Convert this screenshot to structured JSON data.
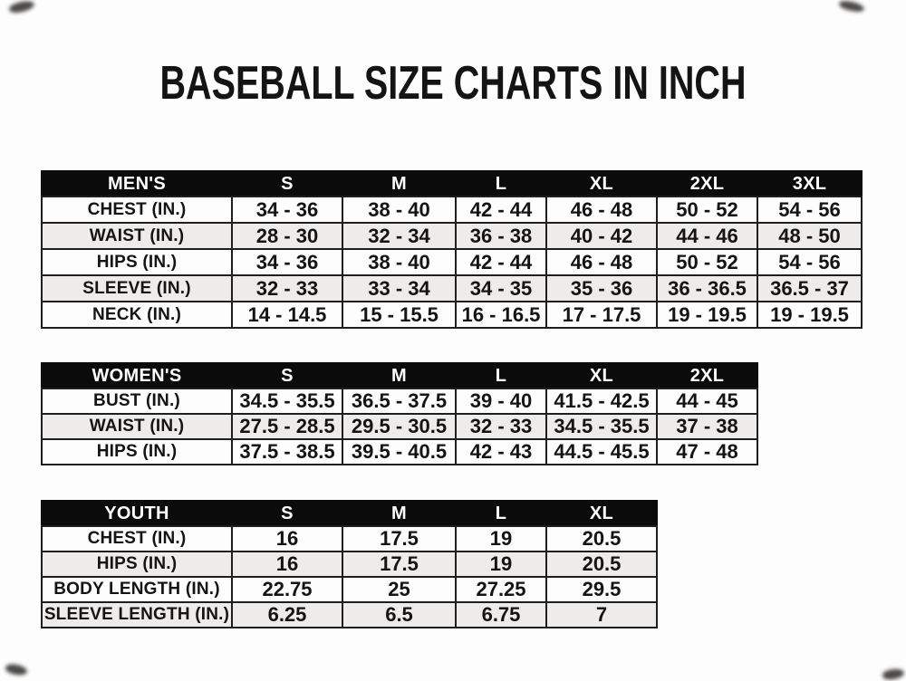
{
  "title": "BASEBALL SIZE CHARTS IN INCH",
  "colors": {
    "header_bg": "#0b0b0b",
    "header_text": "#ffffff",
    "row_odd_bg": "#fdfdfd",
    "row_even_bg": "#edecea",
    "border": "#1e1e1e",
    "text": "#141414"
  },
  "tables": [
    {
      "id": "mens",
      "header": [
        "MEN'S",
        "S",
        "M",
        "L",
        "XL",
        "2XL",
        "3XL"
      ],
      "rows": [
        [
          "CHEST (IN.)",
          "34 - 36",
          "38 - 40",
          "42 - 44",
          "46 - 48",
          "50 - 52",
          "54 - 56"
        ],
        [
          "WAIST (IN.)",
          "28 - 30",
          "32 - 34",
          "36 - 38",
          "40 - 42",
          "44 - 46",
          "48 - 50"
        ],
        [
          "HIPS (IN.)",
          "34 - 36",
          "38 - 40",
          "42 - 44",
          "46 - 48",
          "50 - 52",
          "54 - 56"
        ],
        [
          "SLEEVE (IN.)",
          "32 - 33",
          "33 - 34",
          "34 - 35",
          "35 - 36",
          "36 - 36.5",
          "36.5 - 37"
        ],
        [
          "NECK (IN.)",
          "14 - 14.5",
          "15 - 15.5",
          "16 - 16.5",
          "17 - 17.5",
          "19 - 19.5",
          "19 - 19.5"
        ]
      ]
    },
    {
      "id": "womens",
      "header": [
        "WOMEN'S",
        "S",
        "M",
        "L",
        "XL",
        "2XL"
      ],
      "rows": [
        [
          "BUST (IN.)",
          "34.5 - 35.5",
          "36.5 - 37.5",
          "39 - 40",
          "41.5 - 42.5",
          "44 - 45"
        ],
        [
          "WAIST (IN.)",
          "27.5 - 28.5",
          "29.5 - 30.5",
          "32 - 33",
          "34.5 - 35.5",
          "37 - 38"
        ],
        [
          "HIPS (IN.)",
          "37.5 - 38.5",
          "39.5 - 40.5",
          "42 - 43",
          "44.5 - 45.5",
          "47 - 48"
        ]
      ]
    },
    {
      "id": "youth",
      "header": [
        "YOUTH",
        "S",
        "M",
        "L",
        "XL"
      ],
      "rows": [
        [
          "CHEST (IN.)",
          "16",
          "17.5",
          "19",
          "20.5"
        ],
        [
          "HIPS (IN.)",
          "16",
          "17.5",
          "19",
          "20.5"
        ],
        [
          "BODY LENGTH (IN.)",
          "22.75",
          "25",
          "27.25",
          "29.5"
        ],
        [
          "SLEEVE LENGTH (IN.)",
          "6.25",
          "6.5",
          "6.75",
          "7"
        ]
      ]
    }
  ]
}
